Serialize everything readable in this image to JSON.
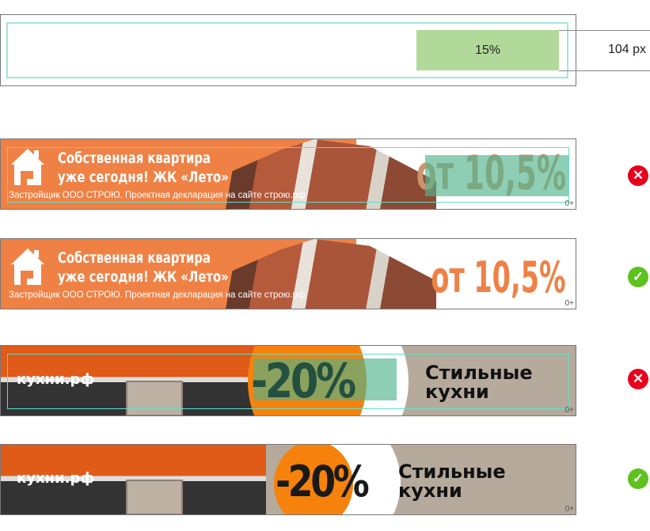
{
  "measure": {
    "percent_label": "15%",
    "width_label": "104 px",
    "fraction": 0.15
  },
  "banners": [
    {
      "title_line1": "Собственная квартира",
      "title_line2": "уже сегодня! ЖК «Лето»",
      "disclaimer": "Застройщик ООО СТРОЮ. Проектная декларация на сайте строю.рф",
      "rate": "от 10,5%",
      "age": "0+",
      "status": "invalid"
    },
    {
      "title_line1": "Собственная квартира",
      "title_line2": "уже сегодня! ЖК «Лето»",
      "disclaimer": "Застройщик ООО СТРОЮ. Проектная декларация на сайте строю.рф",
      "rate": "от 10,5%",
      "age": "0+",
      "status": "valid"
    },
    {
      "brand": "кухни.рф",
      "discount": "-20%",
      "line1": "Стильные",
      "line2": "кухни",
      "age": "0+",
      "status": "invalid"
    },
    {
      "brand": "кухни.рф",
      "discount": "-20%",
      "line1": "Стильные",
      "line2": "кухни",
      "age": "0+",
      "status": "valid"
    }
  ],
  "icons": {
    "invalid": "x-circle-icon",
    "valid": "check-circle-icon"
  },
  "colors": {
    "accent_orange": "#ef8145",
    "safe_zone": "#5fe0c8",
    "highlight_green": "#b1d99a",
    "error": "#e8001c",
    "ok": "#5dc21e"
  },
  "status_glyphs": {
    "invalid": "✕",
    "valid": "✓"
  }
}
